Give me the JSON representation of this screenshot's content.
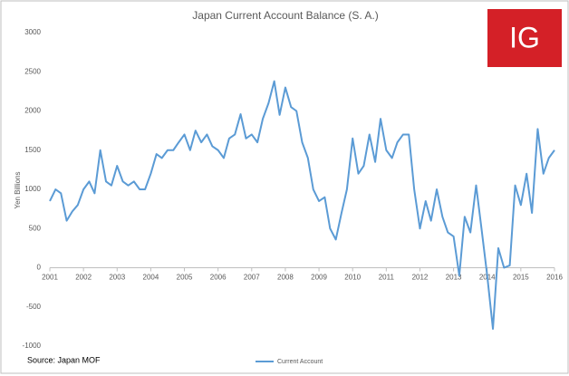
{
  "chart_data": {
    "type": "line",
    "title": "Japan Current Account Balance (S. A.)",
    "y_label": "Yen Billions",
    "source": "Source: Japan MOF",
    "logo": "IG",
    "xlim": [
      2001,
      2016
    ],
    "xticks": [
      2001,
      2002,
      2003,
      2004,
      2005,
      2006,
      2007,
      2008,
      2009,
      2010,
      2011,
      2012,
      2013,
      2014,
      2015,
      2016
    ],
    "ylim": [
      -1000,
      3000
    ],
    "yticks": [
      -1000,
      -500,
      0,
      500,
      1000,
      1500,
      2000,
      2500,
      3000
    ],
    "legend": "bottom",
    "series": [
      {
        "name": "Current Account",
        "color": "#5b9bd5",
        "x": [
          2001,
          2001.17,
          2001.33,
          2001.5,
          2001.67,
          2001.83,
          2002,
          2002.17,
          2002.33,
          2002.5,
          2002.67,
          2002.83,
          2003,
          2003.17,
          2003.33,
          2003.5,
          2003.67,
          2003.83,
          2004,
          2004.17,
          2004.33,
          2004.5,
          2004.67,
          2004.83,
          2005,
          2005.17,
          2005.33,
          2005.5,
          2005.67,
          2005.83,
          2006,
          2006.17,
          2006.33,
          2006.5,
          2006.67,
          2006.83,
          2007,
          2007.17,
          2007.33,
          2007.5,
          2007.67,
          2007.83,
          2008,
          2008.17,
          2008.33,
          2008.5,
          2008.67,
          2008.83,
          2009,
          2009.17,
          2009.33,
          2009.5,
          2009.67,
          2009.83,
          2010,
          2010.17,
          2010.33,
          2010.5,
          2010.67,
          2010.83,
          2011,
          2011.17,
          2011.33,
          2011.5,
          2011.67,
          2011.83,
          2012,
          2012.17,
          2012.33,
          2012.5,
          2012.67,
          2012.83,
          2013,
          2013.17,
          2013.33,
          2013.5,
          2013.67,
          2013.83,
          2014,
          2014.17,
          2014.33,
          2014.5,
          2014.67,
          2014.83,
          2015,
          2015.17,
          2015.33,
          2015.5,
          2015.67,
          2015.83,
          2016
        ],
        "values": [
          850,
          1000,
          950,
          600,
          720,
          800,
          1000,
          1100,
          950,
          1500,
          1100,
          1050,
          1300,
          1100,
          1050,
          1100,
          1000,
          1000,
          1200,
          1450,
          1400,
          1500,
          1500,
          1600,
          1700,
          1500,
          1750,
          1600,
          1700,
          1550,
          1500,
          1400,
          1650,
          1700,
          1960,
          1650,
          1700,
          1600,
          1900,
          2100,
          2380,
          1950,
          2300,
          2050,
          2000,
          1600,
          1400,
          1000,
          850,
          900,
          500,
          360,
          700,
          1000,
          1650,
          1200,
          1300,
          1700,
          1350,
          1900,
          1500,
          1400,
          1600,
          1700,
          1700,
          1000,
          500,
          850,
          600,
          1000,
          650,
          450,
          400,
          -100,
          650,
          450,
          1050,
          500,
          -100,
          -780,
          250,
          0,
          30,
          1050,
          800,
          1200,
          700,
          1770,
          1200,
          1400,
          1500
        ]
      }
    ]
  }
}
